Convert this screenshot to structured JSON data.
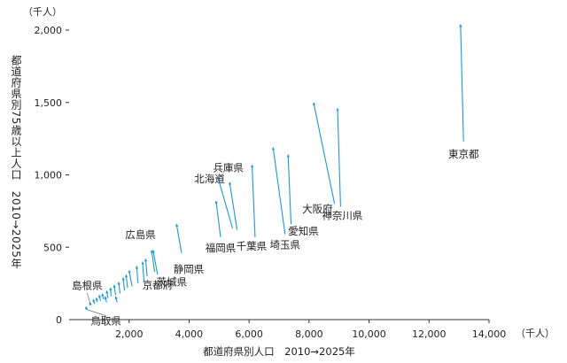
{
  "chart_data": {
    "type": "scatter",
    "y_unit": "（千人）",
    "x_unit": "（千人）",
    "xlabel": "都道府県別人口　2010→2025年",
    "ylabel": "都道府県別75歳以上人口　2010→2025年",
    "xlim": [
      0,
      14000
    ],
    "ylim": [
      0,
      2000
    ],
    "x_ticks": [
      2000,
      4000,
      6000,
      8000,
      10000,
      12000,
      14000
    ],
    "y_ticks": [
      0,
      500,
      1000,
      1500,
      2000
    ],
    "x_tick_labels": [
      "2,000",
      "4,000",
      "6,000",
      "8,000",
      "10,000",
      "12,000",
      "14,000"
    ],
    "y_tick_labels": [
      "0",
      "500",
      "1,000",
      "1,500",
      "2,000"
    ],
    "grid": false,
    "arrow_color": "#1a9ad6",
    "series": [
      {
        "name": "東京都",
        "x": [
          13150,
          13050
        ],
        "y": [
          1230,
          2040
        ],
        "labeled": true
      },
      {
        "name": "大阪府",
        "x": [
          8850,
          8150
        ],
        "y": [
          800,
          1500
        ],
        "labeled": true
      },
      {
        "name": "神奈川県",
        "x": [
          9050,
          8950
        ],
        "y": [
          780,
          1460
        ],
        "labeled": true
      },
      {
        "name": "愛知県",
        "x": [
          7400,
          7300
        ],
        "y": [
          660,
          1140
        ],
        "labeled": true
      },
      {
        "name": "埼玉県",
        "x": [
          7200,
          6800
        ],
        "y": [
          590,
          1190
        ],
        "labeled": true
      },
      {
        "name": "千葉県",
        "x": [
          6200,
          6100
        ],
        "y": [
          570,
          1070
        ],
        "labeled": true
      },
      {
        "name": "兵庫県",
        "x": [
          5600,
          5350
        ],
        "y": [
          620,
          950
        ],
        "labeled": true
      },
      {
        "name": "北海道",
        "x": [
          5450,
          4950
        ],
        "y": [
          630,
          990
        ],
        "labeled": true
      },
      {
        "name": "福岡県",
        "x": [
          5050,
          4900
        ],
        "y": [
          570,
          820
        ],
        "labeled": true
      },
      {
        "name": "静岡県",
        "x": [
          3750,
          3580
        ],
        "y": [
          460,
          660
        ],
        "labeled": true
      },
      {
        "name": "広島県",
        "x": [
          2850,
          2750
        ],
        "y": [
          330,
          480
        ],
        "labeled": true
      },
      {
        "name": "茨城県",
        "x": [
          2950,
          2800
        ],
        "y": [
          310,
          480
        ],
        "labeled": true
      },
      {
        "name": "京都府",
        "x": [
          2600,
          2550
        ],
        "y": [
          300,
          420
        ],
        "labeled": true
      },
      {
        "name": "島根県",
        "x": [
          720,
          680
        ],
        "y": [
          100,
          120
        ],
        "labeled": true
      },
      {
        "name": "鳥取県",
        "x": [
          580,
          560
        ],
        "y": [
          70,
          90
        ],
        "labeled": true
      },
      {
        "name": "",
        "x": [
          2500,
          2450
        ],
        "y": [
          260,
          400
        ],
        "labeled": false
      },
      {
        "name": "",
        "x": [
          2300,
          2250
        ],
        "y": [
          250,
          370
        ],
        "labeled": false
      },
      {
        "name": "",
        "x": [
          2100,
          2000
        ],
        "y": [
          230,
          340
        ],
        "labeled": false
      },
      {
        "name": "",
        "x": [
          1950,
          1900
        ],
        "y": [
          220,
          310
        ],
        "labeled": false
      },
      {
        "name": "",
        "x": [
          1850,
          1800
        ],
        "y": [
          200,
          290
        ],
        "labeled": false
      },
      {
        "name": "",
        "x": [
          1700,
          1650
        ],
        "y": [
          180,
          260
        ],
        "labeled": false
      },
      {
        "name": "",
        "x": [
          1550,
          1500
        ],
        "y": [
          170,
          240
        ],
        "labeled": false
      },
      {
        "name": "",
        "x": [
          1400,
          1380
        ],
        "y": [
          160,
          220
        ],
        "labeled": false
      },
      {
        "name": "",
        "x": [
          1300,
          1250
        ],
        "y": [
          150,
          200
        ],
        "labeled": false
      },
      {
        "name": "",
        "x": [
          1150,
          1100
        ],
        "y": [
          140,
          180
        ],
        "labeled": false
      },
      {
        "name": "",
        "x": [
          1050,
          1000
        ],
        "y": [
          130,
          170
        ],
        "labeled": false
      },
      {
        "name": "",
        "x": [
          950,
          900
        ],
        "y": [
          120,
          150
        ],
        "labeled": false
      },
      {
        "name": "",
        "x": [
          850,
          800
        ],
        "y": [
          110,
          140
        ],
        "labeled": false
      },
      {
        "name": "",
        "x": [
          1600,
          1550
        ],
        "y": [
          120,
          160
        ],
        "labeled": false
      },
      {
        "name": "",
        "x": [
          1250,
          1200
        ],
        "y": [
          120,
          160
        ],
        "labeled": false
      }
    ]
  }
}
